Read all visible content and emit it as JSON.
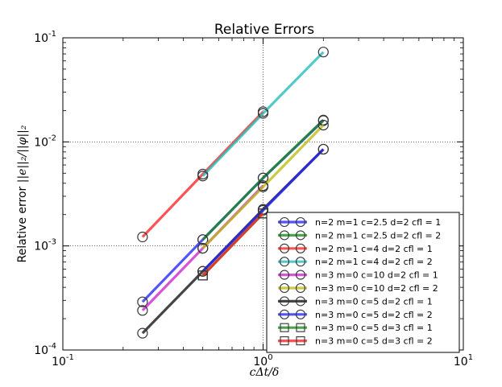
{
  "chart_data": {
    "type": "line",
    "title": "Relative Errors",
    "xlabel": "cΔt/δ",
    "ylabel_prefix": "Relative error ",
    "ylabel_math": "||e||₂/||φ||₂",
    "xscale": "log",
    "yscale": "log",
    "xlim": [
      0.1,
      10
    ],
    "ylim": [
      0.0001,
      0.1
    ],
    "grid": true,
    "legend_position": "lower-right",
    "x_ticks": [
      {
        "value": 0.1,
        "base": "10",
        "exp": "-1"
      },
      {
        "value": 1,
        "base": "10",
        "exp": "0"
      },
      {
        "value": 10,
        "base": "10",
        "exp": "1"
      }
    ],
    "y_ticks": [
      {
        "value": 0.0001,
        "base": "10",
        "exp": "-4"
      },
      {
        "value": 0.001,
        "base": "10",
        "exp": "-3"
      },
      {
        "value": 0.01,
        "base": "10",
        "exp": "-2"
      },
      {
        "value": 0.1,
        "base": "10",
        "exp": "-1"
      }
    ],
    "series": [
      {
        "name": "n=2 m=1 c=2.5 d=2 cfl = 1",
        "color": "#2222ff",
        "marker": "circle",
        "x": [
          0.25,
          0.5,
          1,
          2
        ],
        "y": [
          0.00029,
          0.00115,
          0.0045,
          0.016
        ]
      },
      {
        "name": "n=2 m=1 c=2.5 d=2 cfl = 2",
        "color": "#1a8a1a",
        "marker": "circle",
        "x": [
          0.5,
          1,
          2
        ],
        "y": [
          0.00115,
          0.0045,
          0.0162
        ]
      },
      {
        "name": "n=2 m=1 c=4 d=2 cfl = 1",
        "color": "#ff2222",
        "marker": "circle",
        "x": [
          0.25,
          0.5,
          1
        ],
        "y": [
          0.00122,
          0.0049,
          0.0195
        ]
      },
      {
        "name": "n=2 m=1 c=4 d=2 cfl = 2",
        "color": "#22bbbb",
        "marker": "circle",
        "x": [
          0.5,
          1,
          2
        ],
        "y": [
          0.0047,
          0.0188,
          0.073
        ]
      },
      {
        "name": "n=3 m=0 c=10 d=2 cfl = 1",
        "color": "#cc22cc",
        "marker": "circle",
        "x": [
          0.25,
          0.5,
          1
        ],
        "y": [
          0.00024,
          0.00095,
          0.0038
        ]
      },
      {
        "name": "n=3 m=0 c=10 d=2 cfl = 2",
        "color": "#bbbb11",
        "marker": "circle",
        "x": [
          0.5,
          1,
          2
        ],
        "y": [
          0.00095,
          0.0037,
          0.0145
        ]
      },
      {
        "name": "n=3 m=0 c=5 d=2 cfl = 1",
        "color": "#111111",
        "marker": "circle",
        "x": [
          0.25,
          0.5,
          1,
          2
        ],
        "y": [
          0.000145,
          0.00057,
          0.00225,
          0.0085
        ]
      },
      {
        "name": "n=3 m=0 c=5 d=2 cfl = 2",
        "color": "#2222ff",
        "marker": "circle",
        "x": [
          0.5,
          1,
          2
        ],
        "y": [
          0.00057,
          0.0022,
          0.0085
        ]
      },
      {
        "name": "n=3 m=0 c=5 d=3 cfl = 1",
        "color": "#1a8a1a",
        "marker": "square",
        "x": [
          0.5,
          1
        ],
        "y": [
          0.00052,
          0.00205
        ]
      },
      {
        "name": "n=3 m=0 c=5 d=3 cfl = 2",
        "color": "#ff2222",
        "marker": "square",
        "x": [
          0.5,
          1
        ],
        "y": [
          0.00052,
          0.00205
        ]
      }
    ]
  }
}
